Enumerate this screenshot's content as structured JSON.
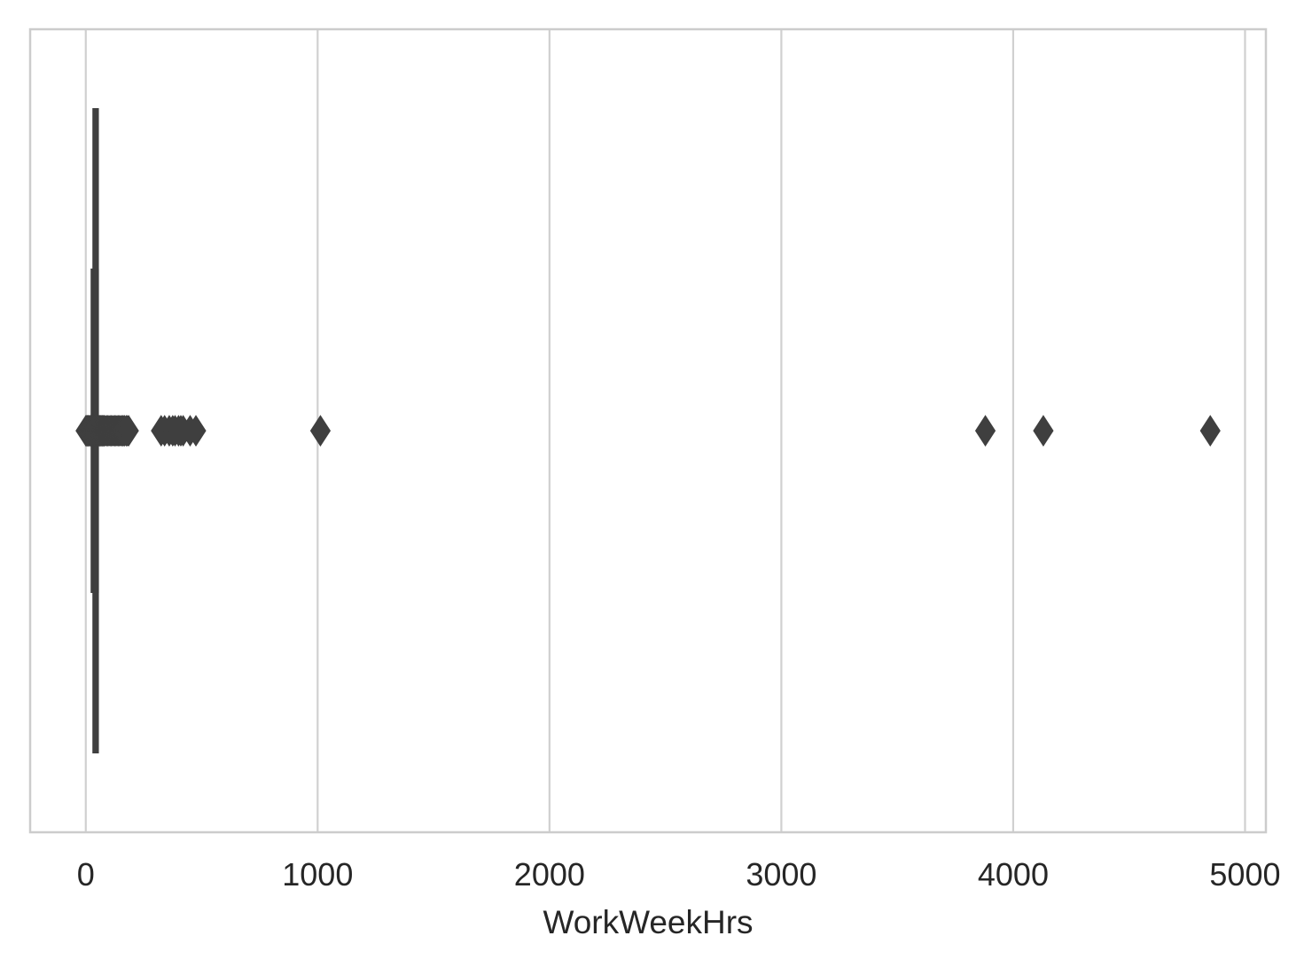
{
  "chart_data": {
    "type": "boxplot",
    "orientation": "horizontal",
    "xlabel": "WorkWeekHrs",
    "xlim": [
      -240,
      5090
    ],
    "xticks": [
      0,
      1000,
      2000,
      3000,
      4000,
      5000
    ],
    "xtick_labels": [
      "0",
      "1000",
      "2000",
      "3000",
      "4000",
      "5000"
    ],
    "grid": "vertical",
    "colors": {
      "box": "#3f3f3f",
      "grid": "#d0d0d0",
      "frame": "#cccccc",
      "text": "#262626"
    },
    "box": {
      "whisker_low": 40,
      "q1": 40,
      "median": 40,
      "q3": 45,
      "whisker_high": 45
    },
    "outliers": [
      0,
      3,
      5,
      8,
      10,
      12,
      15,
      18,
      20,
      22,
      25,
      28,
      30,
      32,
      35,
      38,
      48,
      50,
      52,
      55,
      58,
      60,
      62,
      65,
      68,
      70,
      72,
      75,
      78,
      80,
      85,
      90,
      95,
      100,
      105,
      110,
      115,
      120,
      125,
      130,
      135,
      140,
      145,
      150,
      155,
      160,
      165,
      168,
      175,
      180,
      185,
      325,
      340,
      360,
      375,
      385,
      400,
      410,
      420,
      450,
      475,
      1012,
      3880,
      4130,
      4850
    ]
  }
}
